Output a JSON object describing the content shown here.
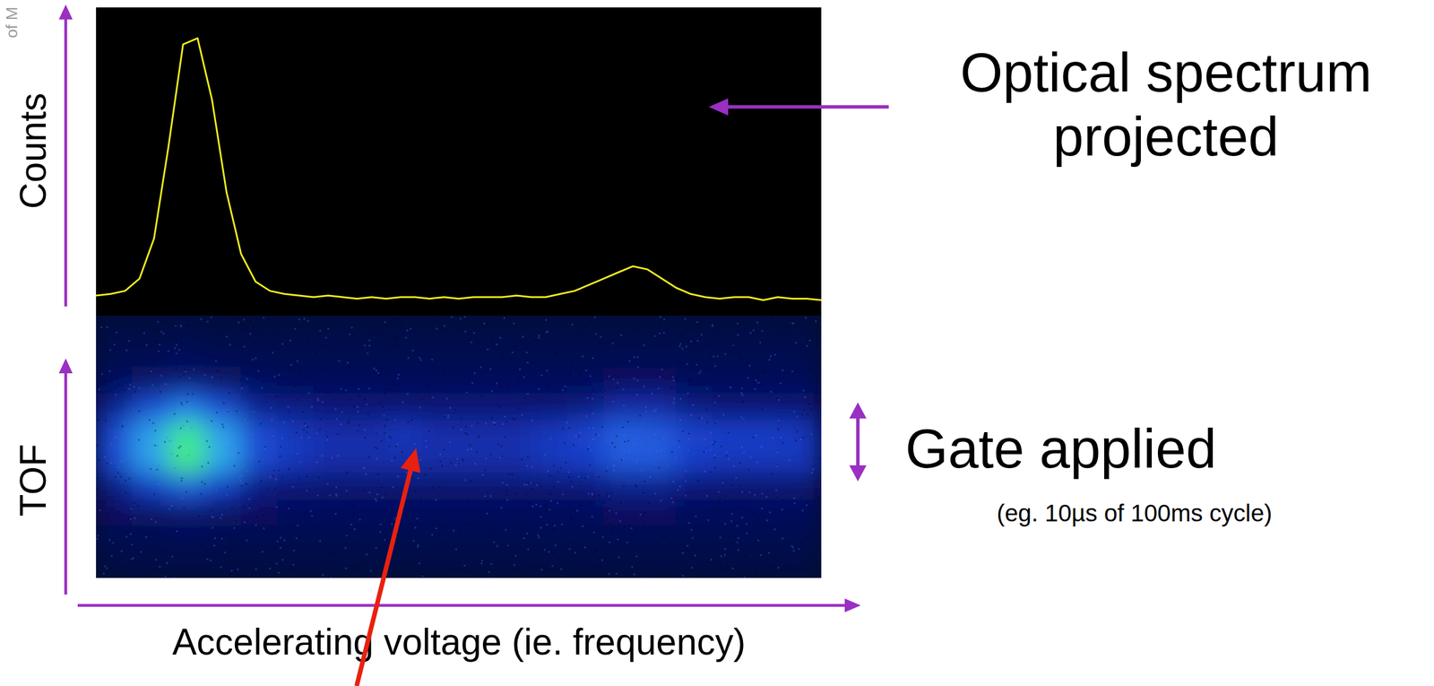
{
  "chart_data": [
    {
      "type": "line",
      "y_label": "Counts",
      "color": "#f2f21e",
      "tick_labels": false,
      "xlim": [
        0,
        100
      ],
      "ylim": [
        0,
        100
      ],
      "x": [
        0,
        2,
        4,
        6,
        8,
        10,
        12,
        14,
        16,
        18,
        20,
        22,
        24,
        26,
        28,
        30,
        32,
        34,
        36,
        38,
        40,
        42,
        44,
        46,
        48,
        50,
        52,
        54,
        56,
        58,
        60,
        62,
        64,
        66,
        68,
        70,
        72,
        74,
        76,
        78,
        80,
        82,
        84,
        86,
        88,
        90,
        92,
        94,
        96,
        98,
        100
      ],
      "values": [
        6.5,
        7,
        8,
        12,
        25,
        55,
        88,
        90,
        70,
        40,
        20,
        11,
        8,
        7,
        6.5,
        6,
        6.5,
        6,
        5.5,
        6,
        5.5,
        6,
        6,
        5.5,
        6,
        5.5,
        6,
        6,
        6,
        6.5,
        6,
        6,
        7,
        8,
        10,
        12,
        14,
        16,
        15,
        12,
        9,
        7,
        6,
        5.5,
        6,
        6,
        5,
        6,
        5.5,
        5.5,
        5
      ]
    },
    {
      "type": "heatmap",
      "y_label": "TOF",
      "x_label": "Accelerating voltage (ie. frequency)",
      "tick_labels": false,
      "xlim": [
        0,
        100
      ],
      "zlim": [
        0,
        1
      ],
      "cells": [
        [
          0.06,
          0.06,
          0.07,
          0.06,
          0.06,
          0.06,
          0.06,
          0.06,
          0.06,
          0.06,
          0.06,
          0.06,
          0.06,
          0.06,
          0.06,
          0.06,
          0.06,
          0.06,
          0.06,
          0.06
        ],
        [
          0.08,
          0.08,
          0.09,
          0.08,
          0.08,
          0.08,
          0.08,
          0.08,
          0.08,
          0.08,
          0.08,
          0.08,
          0.08,
          0.08,
          0.08,
          0.08,
          0.08,
          0.08,
          0.08,
          0.08
        ],
        [
          0.11,
          0.13,
          0.16,
          0.13,
          0.11,
          0.1,
          0.1,
          0.1,
          0.1,
          0.1,
          0.1,
          0.1,
          0.1,
          0.1,
          0.12,
          0.12,
          0.1,
          0.1,
          0.1,
          0.1
        ],
        [
          0.2,
          0.35,
          0.5,
          0.35,
          0.2,
          0.18,
          0.16,
          0.16,
          0.16,
          0.16,
          0.16,
          0.16,
          0.16,
          0.18,
          0.24,
          0.24,
          0.18,
          0.16,
          0.16,
          0.16
        ],
        [
          0.35,
          0.6,
          0.85,
          0.6,
          0.35,
          0.28,
          0.25,
          0.25,
          0.28,
          0.25,
          0.25,
          0.25,
          0.28,
          0.32,
          0.42,
          0.4,
          0.32,
          0.3,
          0.3,
          0.28
        ],
        [
          0.35,
          0.6,
          0.9,
          0.62,
          0.35,
          0.28,
          0.25,
          0.25,
          0.25,
          0.25,
          0.25,
          0.25,
          0.28,
          0.3,
          0.4,
          0.4,
          0.3,
          0.28,
          0.28,
          0.28
        ],
        [
          0.18,
          0.3,
          0.42,
          0.3,
          0.18,
          0.16,
          0.15,
          0.15,
          0.15,
          0.15,
          0.15,
          0.15,
          0.15,
          0.16,
          0.2,
          0.2,
          0.16,
          0.15,
          0.15,
          0.15
        ],
        [
          0.12,
          0.13,
          0.15,
          0.13,
          0.12,
          0.11,
          0.11,
          0.11,
          0.11,
          0.11,
          0.11,
          0.11,
          0.11,
          0.11,
          0.12,
          0.12,
          0.11,
          0.11,
          0.11,
          0.11
        ],
        [
          0.08,
          0.08,
          0.09,
          0.08,
          0.08,
          0.08,
          0.08,
          0.08,
          0.08,
          0.08,
          0.08,
          0.08,
          0.08,
          0.08,
          0.08,
          0.08,
          0.08,
          0.08,
          0.08,
          0.08
        ],
        [
          0.06,
          0.06,
          0.06,
          0.06,
          0.06,
          0.06,
          0.06,
          0.06,
          0.06,
          0.06,
          0.06,
          0.06,
          0.06,
          0.06,
          0.06,
          0.06,
          0.06,
          0.06,
          0.06,
          0.06
        ]
      ]
    }
  ],
  "annotations": {
    "spectrum_label": "Optical spectrum projected",
    "gate_label": "Gate applied",
    "gate_note": "(eg. 10µs of 100ms cycle)",
    "watermark": "of M"
  }
}
